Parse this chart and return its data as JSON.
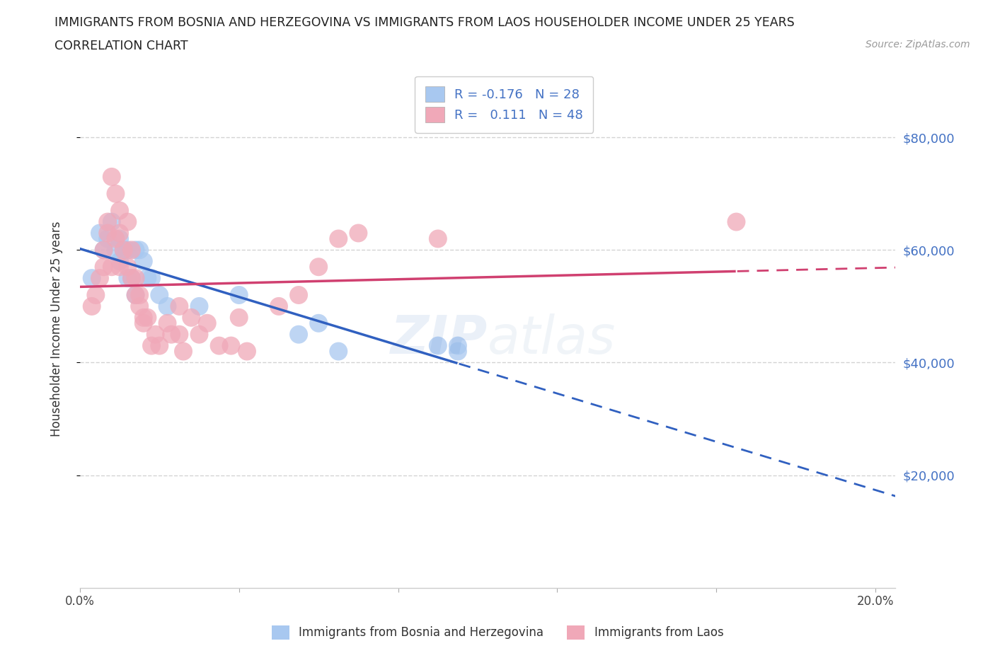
{
  "title_line1": "IMMIGRANTS FROM BOSNIA AND HERZEGOVINA VS IMMIGRANTS FROM LAOS HOUSEHOLDER INCOME UNDER 25 YEARS",
  "title_line2": "CORRELATION CHART",
  "source": "Source: ZipAtlas.com",
  "ylabel": "Householder Income Under 25 years",
  "xlim": [
    0.0,
    0.205
  ],
  "ylim": [
    0,
    92000
  ],
  "yticks": [
    20000,
    40000,
    60000,
    80000
  ],
  "xticks": [
    0.0,
    0.04,
    0.08,
    0.12,
    0.16,
    0.2
  ],
  "xtick_labels": [
    "0.0%",
    "",
    "",
    "",
    "",
    "20.0%"
  ],
  "ytick_labels": [
    "$20,000",
    "$40,000",
    "$60,000",
    "$80,000"
  ],
  "color_bosnia": "#a8c8f0",
  "color_laos": "#f0a8b8",
  "trend_color_bosnia": "#3060c0",
  "trend_color_laos": "#d04070",
  "R_bosnia": -0.176,
  "N_bosnia": 28,
  "R_laos": 0.111,
  "N_laos": 48,
  "bosnia_x": [
    0.003,
    0.005,
    0.006,
    0.007,
    0.008,
    0.009,
    0.01,
    0.01,
    0.011,
    0.012,
    0.012,
    0.013,
    0.014,
    0.014,
    0.015,
    0.016,
    0.017,
    0.018,
    0.02,
    0.022,
    0.03,
    0.04,
    0.055,
    0.06,
    0.065,
    0.09,
    0.095,
    0.095
  ],
  "bosnia_y": [
    55000,
    63000,
    60000,
    62000,
    65000,
    60000,
    58000,
    62000,
    60000,
    55000,
    60000,
    55000,
    52000,
    60000,
    60000,
    58000,
    55000,
    55000,
    52000,
    50000,
    50000,
    52000,
    45000,
    47000,
    42000,
    43000,
    42000,
    43000
  ],
  "laos_x": [
    0.003,
    0.004,
    0.005,
    0.006,
    0.006,
    0.007,
    0.007,
    0.008,
    0.008,
    0.009,
    0.009,
    0.01,
    0.01,
    0.01,
    0.011,
    0.012,
    0.012,
    0.013,
    0.013,
    0.014,
    0.014,
    0.015,
    0.015,
    0.016,
    0.016,
    0.017,
    0.018,
    0.019,
    0.02,
    0.022,
    0.023,
    0.025,
    0.025,
    0.026,
    0.028,
    0.03,
    0.032,
    0.035,
    0.038,
    0.04,
    0.042,
    0.05,
    0.055,
    0.06,
    0.065,
    0.07,
    0.09,
    0.165
  ],
  "laos_y": [
    50000,
    52000,
    55000,
    57000,
    60000,
    63000,
    65000,
    57000,
    73000,
    62000,
    70000,
    57000,
    63000,
    67000,
    60000,
    65000,
    57000,
    55000,
    60000,
    52000,
    55000,
    50000,
    52000,
    47000,
    48000,
    48000,
    43000,
    45000,
    43000,
    47000,
    45000,
    50000,
    45000,
    42000,
    48000,
    45000,
    47000,
    43000,
    43000,
    48000,
    42000,
    50000,
    52000,
    57000,
    62000,
    63000,
    62000,
    65000
  ],
  "watermark": "ZIPAtlas",
  "legend_bosnia_label": "Immigrants from Bosnia and Herzegovina",
  "legend_laos_label": "Immigrants from Laos",
  "background_color": "#ffffff",
  "grid_color": "#c8c8c8",
  "ryt_color": "#4472c4"
}
